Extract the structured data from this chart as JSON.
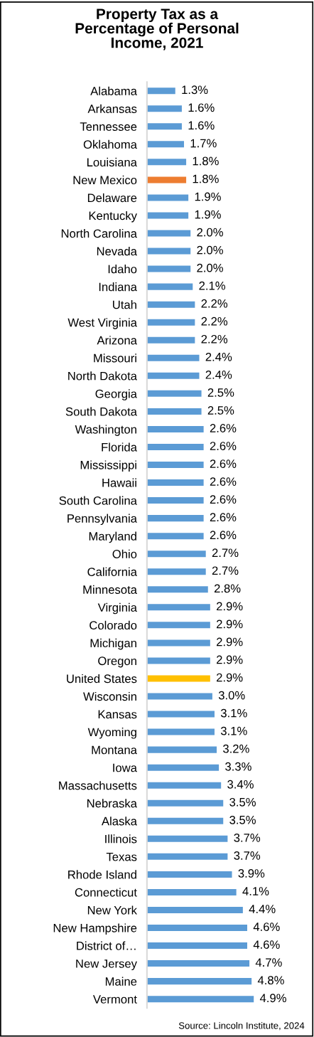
{
  "chart_data": {
    "type": "bar",
    "orientation": "horizontal",
    "title": "Property Tax as a\nPercentage of Personal\nIncome, 2021",
    "categories": [
      "Alabama",
      "Arkansas",
      "Tennessee",
      "Oklahoma",
      "Louisiana",
      "New Mexico",
      "Delaware",
      "Kentucky",
      "North Carolina",
      "Nevada",
      "Idaho",
      "Indiana",
      "Utah",
      "West Virginia",
      "Arizona",
      "Missouri",
      "North Dakota",
      "Georgia",
      "South Dakota",
      "Washington",
      "Florida",
      "Mississippi",
      "Hawaii",
      "South Carolina",
      "Pennsylvania",
      "Maryland",
      "Ohio",
      "California",
      "Minnesota",
      "Virginia",
      "Colorado",
      "Michigan",
      "Oregon",
      "United States",
      "Wisconsin",
      "Kansas",
      "Wyoming",
      "Montana",
      "Iowa",
      "Massachusetts",
      "Nebraska",
      "Alaska",
      "Illinois",
      "Texas",
      "Rhode Island",
      "Connecticut",
      "New York",
      "New Hampshire",
      "District of…",
      "New Jersey",
      "Maine",
      "Vermont"
    ],
    "values": [
      1.3,
      1.6,
      1.6,
      1.7,
      1.8,
      1.8,
      1.9,
      1.9,
      2.0,
      2.0,
      2.0,
      2.1,
      2.2,
      2.2,
      2.2,
      2.4,
      2.4,
      2.5,
      2.5,
      2.6,
      2.6,
      2.6,
      2.6,
      2.6,
      2.6,
      2.6,
      2.7,
      2.7,
      2.8,
      2.9,
      2.9,
      2.9,
      2.9,
      2.9,
      3.0,
      3.1,
      3.1,
      3.2,
      3.3,
      3.4,
      3.5,
      3.5,
      3.7,
      3.7,
      3.9,
      4.1,
      4.4,
      4.6,
      4.6,
      4.7,
      4.8,
      4.9
    ],
    "value_labels": [
      "1.3%",
      "1.6%",
      "1.6%",
      "1.7%",
      "1.8%",
      "1.8%",
      "1.9%",
      "1.9%",
      "2.0%",
      "2.0%",
      "2.0%",
      "2.1%",
      "2.2%",
      "2.2%",
      "2.2%",
      "2.4%",
      "2.4%",
      "2.5%",
      "2.5%",
      "2.6%",
      "2.6%",
      "2.6%",
      "2.6%",
      "2.6%",
      "2.6%",
      "2.6%",
      "2.7%",
      "2.7%",
      "2.8%",
      "2.9%",
      "2.9%",
      "2.9%",
      "2.9%",
      "2.9%",
      "3.0%",
      "3.1%",
      "3.1%",
      "3.2%",
      "3.3%",
      "3.4%",
      "3.5%",
      "3.5%",
      "3.7%",
      "3.7%",
      "3.9%",
      "4.1%",
      "4.4%",
      "4.6%",
      "4.6%",
      "4.7%",
      "4.8%",
      "4.9%"
    ],
    "colors": [
      "#5b9bd5",
      "#5b9bd5",
      "#5b9bd5",
      "#5b9bd5",
      "#5b9bd5",
      "#ed7d31",
      "#5b9bd5",
      "#5b9bd5",
      "#5b9bd5",
      "#5b9bd5",
      "#5b9bd5",
      "#5b9bd5",
      "#5b9bd5",
      "#5b9bd5",
      "#5b9bd5",
      "#5b9bd5",
      "#5b9bd5",
      "#5b9bd5",
      "#5b9bd5",
      "#5b9bd5",
      "#5b9bd5",
      "#5b9bd5",
      "#5b9bd5",
      "#5b9bd5",
      "#5b9bd5",
      "#5b9bd5",
      "#5b9bd5",
      "#5b9bd5",
      "#5b9bd5",
      "#5b9bd5",
      "#5b9bd5",
      "#5b9bd5",
      "#5b9bd5",
      "#ffc000",
      "#5b9bd5",
      "#5b9bd5",
      "#5b9bd5",
      "#5b9bd5",
      "#5b9bd5",
      "#5b9bd5",
      "#5b9bd5",
      "#5b9bd5",
      "#5b9bd5",
      "#5b9bd5",
      "#5b9bd5",
      "#5b9bd5",
      "#5b9bd5",
      "#5b9bd5",
      "#5b9bd5",
      "#5b9bd5",
      "#5b9bd5",
      "#5b9bd5"
    ],
    "tick_labels": "y",
    "annotations": [
      "Source: Lincoln Institute, 2024"
    ]
  }
}
